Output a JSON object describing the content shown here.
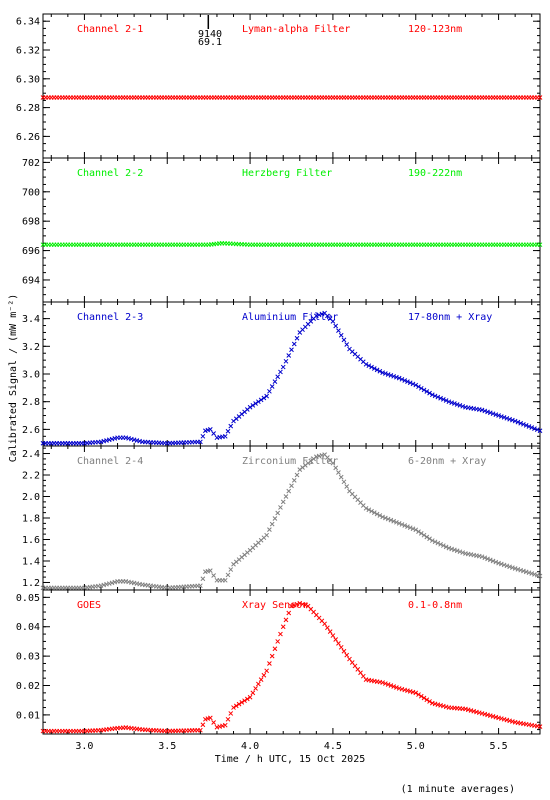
{
  "colors": {
    "red": "#ff0000",
    "green": "#00ee00",
    "blue": "#0000cc",
    "gray": "#808080",
    "axis": "#000000",
    "background": "#ffffff"
  },
  "figure": {
    "ylabel": "Calibrated Signal / (mW m⁻²)",
    "xlabel": "Time / h UTC, 15 Oct 2025",
    "footnote": "(1 minute averages)",
    "marker_label_top": "9140",
    "marker_label_bottom": "69.1"
  },
  "chart_data": [
    {
      "type": "scatter",
      "panel": "Channel 2-1",
      "labels": [
        "Channel 2-1",
        "Lyman-alpha Filter",
        "120-123nm"
      ],
      "color": "red",
      "ylim": [
        6.245,
        6.345
      ],
      "yticks": [
        6.26,
        6.28,
        6.3,
        6.32,
        6.34
      ],
      "ytick_labels": [
        "6.26",
        "6.28",
        "6.30",
        "6.32",
        "6.34"
      ],
      "xlim": [
        2.75,
        5.75
      ],
      "x": [
        2.75,
        3.0,
        3.25,
        3.5,
        3.75,
        4.0,
        4.25,
        4.5,
        4.75,
        5.0,
        5.25,
        5.5,
        5.75
      ],
      "y": [
        6.287,
        6.287,
        6.287,
        6.287,
        6.287,
        6.287,
        6.287,
        6.287,
        6.287,
        6.287,
        6.287,
        6.287,
        6.287
      ]
    },
    {
      "type": "scatter",
      "panel": "Channel 2-2",
      "labels": [
        "Channel 2-2",
        "Herzberg Filter",
        "190-222nm"
      ],
      "color": "green",
      "ylim": [
        692.5,
        702.3
      ],
      "yticks": [
        694,
        696,
        698,
        700,
        702
      ],
      "ytick_labels": [
        "694",
        "696",
        "698",
        "700",
        "702"
      ],
      "xlim": [
        2.75,
        5.75
      ],
      "x": [
        2.75,
        3.0,
        3.25,
        3.5,
        3.75,
        3.83,
        4.0,
        4.25,
        4.5,
        4.75,
        5.0,
        5.25,
        5.5,
        5.75
      ],
      "y": [
        696.4,
        696.4,
        696.4,
        696.4,
        696.4,
        696.5,
        696.4,
        696.4,
        696.4,
        696.4,
        696.4,
        696.4,
        696.4,
        696.4
      ]
    },
    {
      "type": "scatter",
      "panel": "Channel 2-3",
      "labels": [
        "Channel 2-3",
        "Aluminium Filter",
        "17-80nm + Xray"
      ],
      "color": "blue",
      "ylim": [
        2.48,
        3.52
      ],
      "yticks": [
        2.6,
        2.8,
        3.0,
        3.2,
        3.4
      ],
      "ytick_labels": [
        "2.6",
        "2.8",
        "3.0",
        "3.2",
        "3.4"
      ],
      "xlim": [
        2.75,
        5.75
      ],
      "x": [
        2.75,
        3.0,
        3.1,
        3.2,
        3.25,
        3.35,
        3.5,
        3.7,
        3.73,
        3.76,
        3.8,
        3.85,
        3.9,
        4.0,
        4.1,
        4.2,
        4.3,
        4.4,
        4.45,
        4.5,
        4.6,
        4.7,
        4.8,
        4.9,
        5.0,
        5.1,
        5.2,
        5.3,
        5.4,
        5.5,
        5.6,
        5.75
      ],
      "y": [
        2.5,
        2.5,
        2.51,
        2.54,
        2.54,
        2.51,
        2.5,
        2.51,
        2.59,
        2.6,
        2.54,
        2.55,
        2.66,
        2.76,
        2.84,
        3.05,
        3.3,
        3.42,
        3.44,
        3.38,
        3.18,
        3.07,
        3.01,
        2.97,
        2.92,
        2.85,
        2.8,
        2.76,
        2.74,
        2.7,
        2.66,
        2.59
      ]
    },
    {
      "type": "scatter",
      "panel": "Channel 2-4",
      "labels": [
        "Channel 2-4",
        "Zirconium Filter",
        "6-20nm + Xray"
      ],
      "color": "gray",
      "ylim": [
        1.13,
        2.47
      ],
      "yticks": [
        1.2,
        1.4,
        1.6,
        1.8,
        2.0,
        2.2,
        2.4
      ],
      "ytick_labels": [
        "1.2",
        "1.4",
        "1.6",
        "1.8",
        "2.0",
        "2.2",
        "2.4"
      ],
      "xlim": [
        2.75,
        5.75
      ],
      "x": [
        2.75,
        3.0,
        3.1,
        3.2,
        3.25,
        3.35,
        3.5,
        3.7,
        3.73,
        3.76,
        3.8,
        3.85,
        3.9,
        4.0,
        4.1,
        4.2,
        4.3,
        4.4,
        4.45,
        4.5,
        4.6,
        4.7,
        4.8,
        4.9,
        5.0,
        5.1,
        5.2,
        5.3,
        5.4,
        5.5,
        5.6,
        5.75
      ],
      "y": [
        1.15,
        1.15,
        1.17,
        1.21,
        1.21,
        1.18,
        1.15,
        1.17,
        1.3,
        1.31,
        1.22,
        1.22,
        1.37,
        1.5,
        1.64,
        1.95,
        2.25,
        2.37,
        2.39,
        2.31,
        2.05,
        1.89,
        1.81,
        1.75,
        1.69,
        1.59,
        1.52,
        1.47,
        1.44,
        1.38,
        1.33,
        1.26
      ]
    },
    {
      "type": "scatter",
      "panel": "GOES",
      "labels": [
        "GOES",
        "Xray Sensor",
        "0.1-0.8nm"
      ],
      "color": "red",
      "ylim": [
        0.0035,
        0.0525
      ],
      "yticks": [
        0.01,
        0.02,
        0.03,
        0.04,
        0.05
      ],
      "ytick_labels": [
        "0.01",
        "0.02",
        "0.03",
        "0.04",
        "0.05"
      ],
      "xlim": [
        2.75,
        5.75
      ],
      "xticks": [
        3.0,
        3.5,
        4.0,
        4.5,
        5.0,
        5.5
      ],
      "xtick_labels": [
        "3.0",
        "3.5",
        "4.0",
        "4.5",
        "5.0",
        "5.5"
      ],
      "x": [
        2.75,
        3.0,
        3.1,
        3.2,
        3.25,
        3.35,
        3.5,
        3.7,
        3.73,
        3.76,
        3.8,
        3.85,
        3.9,
        4.0,
        4.1,
        4.2,
        4.25,
        4.3,
        4.35,
        4.45,
        4.6,
        4.7,
        4.8,
        4.9,
        5.0,
        5.1,
        5.2,
        5.3,
        5.4,
        5.5,
        5.6,
        5.75
      ],
      "y": [
        0.0045,
        0.0045,
        0.0048,
        0.0055,
        0.0057,
        0.005,
        0.0045,
        0.0048,
        0.0085,
        0.009,
        0.0058,
        0.0065,
        0.0125,
        0.016,
        0.025,
        0.04,
        0.047,
        0.048,
        0.047,
        0.041,
        0.029,
        0.022,
        0.021,
        0.019,
        0.0175,
        0.014,
        0.0125,
        0.012,
        0.0105,
        0.009,
        0.0075,
        0.006
      ]
    }
  ]
}
